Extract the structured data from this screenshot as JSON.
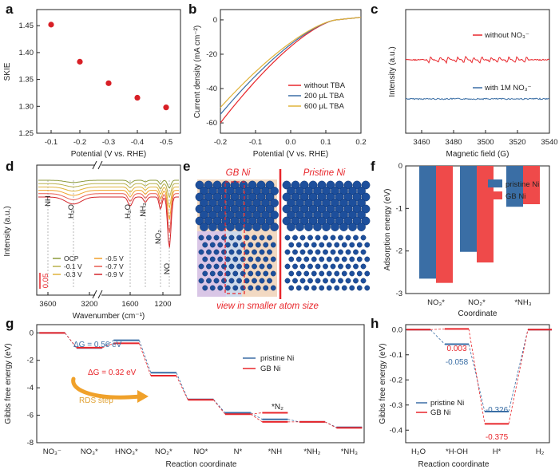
{
  "colors": {
    "red": "#e8262b",
    "blue": "#3a6ea5",
    "gold": "#e0b33a",
    "orange": "#f0a12a",
    "olive": "#8c9a3b",
    "salmon": "#e85a4f"
  },
  "chart_data": [
    {
      "id": "a",
      "label": "a",
      "type": "scatter",
      "xlabel": "Potential (V vs. RHE)",
      "ylabel": "SKIE",
      "x": [
        -0.1,
        -0.2,
        -0.3,
        -0.4,
        -0.5
      ],
      "y": [
        1.452,
        1.383,
        1.343,
        1.316,
        1.298
      ],
      "xticks": [
        "-0.1",
        "-0.2",
        "-0.3",
        "-0.4",
        "-0.5"
      ],
      "yticks": [
        "1.25",
        "1.30",
        "1.35",
        "1.40",
        "1.45"
      ],
      "ylim": [
        1.25,
        1.48
      ]
    },
    {
      "id": "b",
      "label": "b",
      "type": "line",
      "xlabel": "Potential (V vs. RHE)",
      "ylabel": "Current density (mA cm⁻²)",
      "xticks": [
        "-0.2",
        "-0.1",
        "0.0",
        "0.1",
        "0.2"
      ],
      "yticks": [
        "0",
        "-20",
        "-40",
        "-60"
      ],
      "xlim": [
        -0.2,
        0.2
      ],
      "ylim": [
        -66,
        6
      ],
      "series": [
        {
          "name": "without TBA",
          "color": "#e8262b",
          "y_at_min": -60
        },
        {
          "name": "200 μL TBA",
          "color": "#3a6ea5",
          "y_at_min": -55
        },
        {
          "name": "600 μL TBA",
          "color": "#e0b33a",
          "y_at_min": -51
        }
      ]
    },
    {
      "id": "c",
      "label": "c",
      "type": "line",
      "xlabel": "Magnetic field (G)",
      "ylabel": "Intensity (a.u.)",
      "xticks": [
        "3460",
        "3480",
        "3500",
        "3520",
        "3540"
      ],
      "series": [
        {
          "name": "without NO₃⁻",
          "color": "#e8262b"
        },
        {
          "name": "with 1M NO₃⁻",
          "color": "#3a6ea5"
        }
      ]
    },
    {
      "id": "d",
      "label": "d",
      "type": "line",
      "xlabel": "Wavenumber (cm⁻¹)",
      "ylabel": "Intensity (a.u.)",
      "xticks": [
        "3600",
        "3200",
        "1600",
        "1200"
      ],
      "scale_label": "0.05",
      "annotations": [
        "NH",
        "H₂O",
        "H₂O",
        "NH₂",
        "NO₂",
        "NO"
      ],
      "series": [
        {
          "name": "OCP",
          "color": "#8c9a3b"
        },
        {
          "name": "-0.1 V",
          "color": "#b8b04a"
        },
        {
          "name": "-0.3 V",
          "color": "#e0b33a"
        },
        {
          "name": "-0.5 V",
          "color": "#f0a12a"
        },
        {
          "name": "-0.7 V",
          "color": "#e85a4f"
        },
        {
          "name": "-0.9 V",
          "color": "#d4252a"
        }
      ]
    },
    {
      "id": "f",
      "label": "f",
      "type": "bar",
      "xlabel": "Coordinate",
      "ylabel": "Adsorption energy (eV)",
      "categories": [
        "NO₃*",
        "NO₂*",
        "*NH₃"
      ],
      "yticks": [
        "-3",
        "-2",
        "-1",
        "0"
      ],
      "ylim": [
        -3,
        0
      ],
      "series": [
        {
          "name": "pristine Ni",
          "color": "#3a6ea5",
          "values": [
            -2.65,
            -2.02,
            -0.96
          ]
        },
        {
          "name": "GB Ni",
          "color": "#ef4a4a",
          "values": [
            -2.75,
            -2.27,
            -0.9
          ]
        }
      ]
    },
    {
      "id": "g",
      "label": "g",
      "type": "line",
      "xlabel": "Reaction coordinate",
      "ylabel": "Gibbs free energy (eV)",
      "categories": [
        "NO₃⁻",
        "NO₃*",
        "HNO₃*",
        "NO₂*",
        "NO*",
        "N*",
        "*NH",
        "*NH₂",
        "*NH₃"
      ],
      "yticks": [
        "0",
        "-2",
        "-4",
        "-6",
        "-8"
      ],
      "ylim": [
        -8,
        0.6
      ],
      "series": [
        {
          "name": "pristine Ni",
          "color": "#3a6ea5",
          "values": [
            0,
            -1.1,
            -0.54,
            -2.9,
            -4.85,
            -5.82,
            -6.3,
            -6.48,
            -6.88
          ]
        },
        {
          "name": "GB Ni",
          "color": "#e8262b",
          "values": [
            0,
            -1.08,
            -0.76,
            -3.12,
            -4.88,
            -5.92,
            -6.48,
            -6.48,
            -6.92
          ]
        }
      ],
      "extra_label": "*N₂",
      "extra_level": -5.82,
      "annotations": {
        "dg_pristine": "ΔG = 0.56 eV",
        "dg_gb": "ΔG = 0.32 eV",
        "rds": "RDS step"
      }
    },
    {
      "id": "h",
      "label": "h",
      "type": "line",
      "xlabel": "Reaction coordinate",
      "ylabel": "Gibbs free energy (eV)",
      "categories": [
        "H₂O",
        "*H-OH",
        "H*",
        "H₂"
      ],
      "yticks": [
        "0.0",
        "-0.1",
        "-0.2",
        "-0.3",
        "-0.4"
      ],
      "ylim": [
        -0.45,
        0.02
      ],
      "series": [
        {
          "name": "pristine Ni",
          "color": "#3a6ea5",
          "values": [
            0,
            -0.058,
            -0.326,
            0
          ]
        },
        {
          "name": "GB Ni",
          "color": "#e8262b",
          "values": [
            0,
            0.003,
            -0.375,
            0
          ]
        }
      ],
      "value_labels": {
        "pristine": [
          "-0.058",
          "-0.326"
        ],
        "gb": [
          "0.003",
          "-0.375"
        ]
      }
    }
  ],
  "panel_e": {
    "label": "e",
    "title_left": "GB Ni",
    "title_right": "Pristine Ni",
    "caption": "view in smaller atom size"
  }
}
